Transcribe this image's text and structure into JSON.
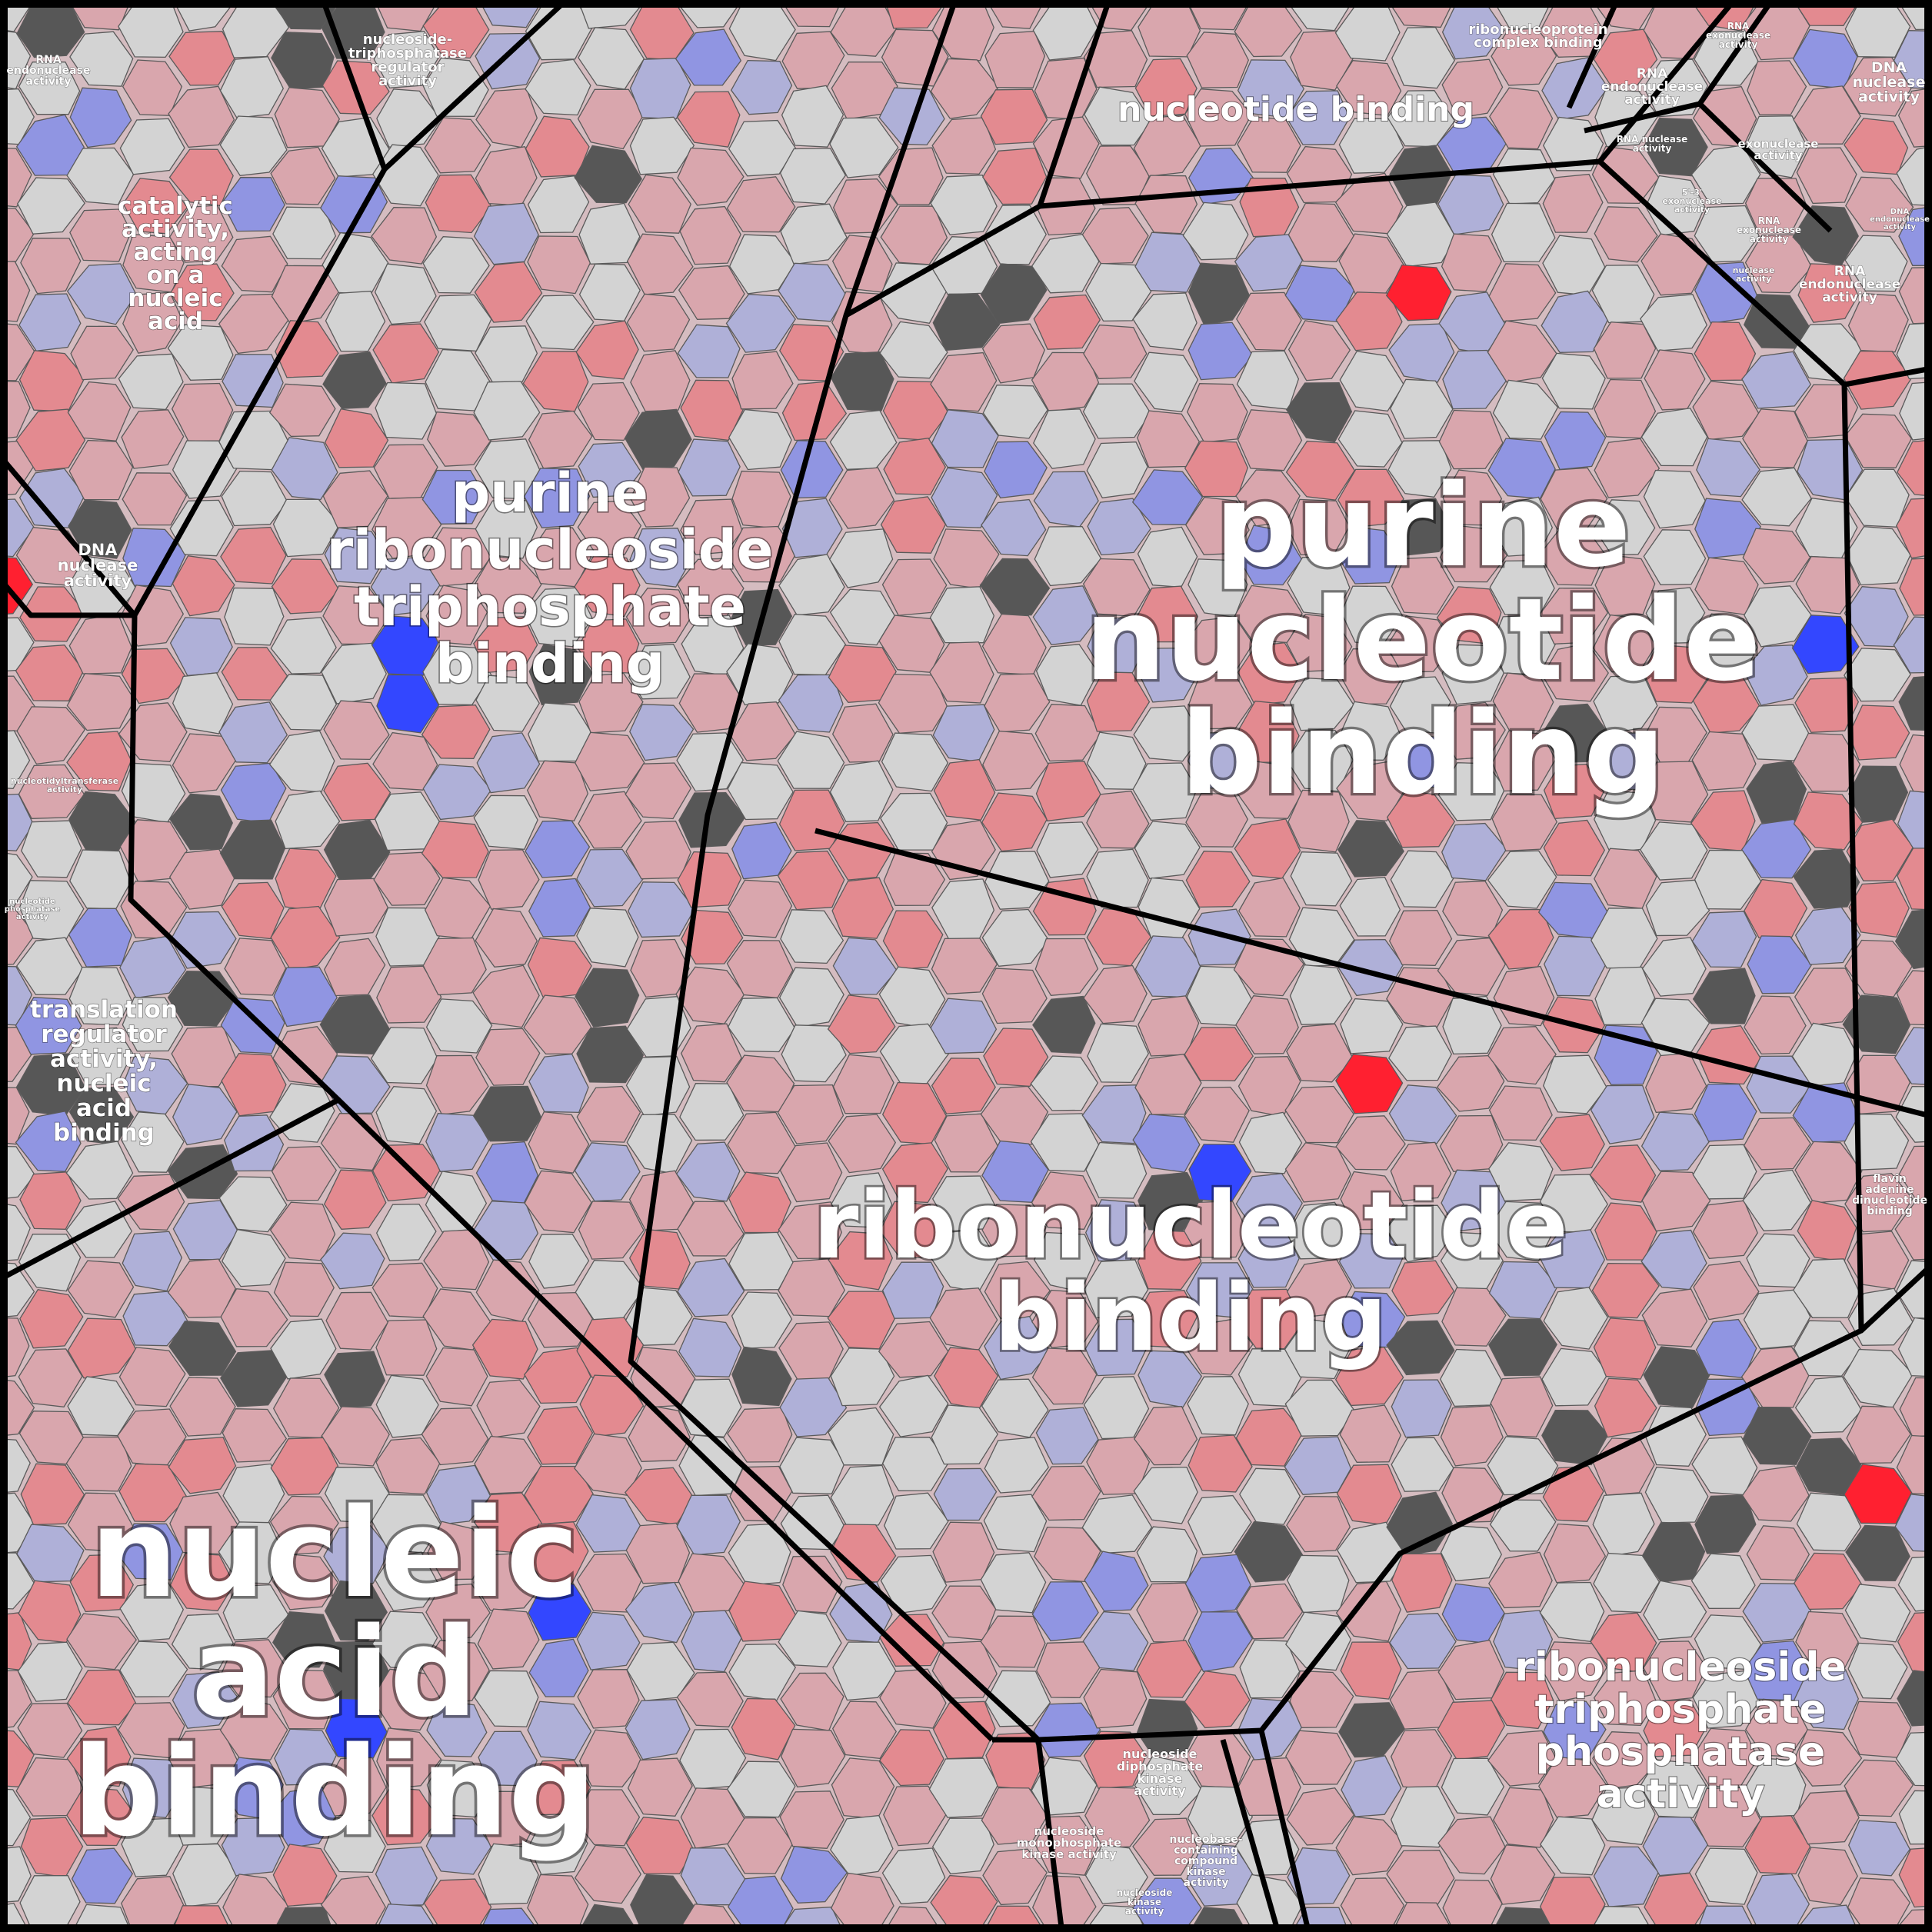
{
  "palette": {
    "frame": "#000000",
    "cell_border": "#5a5a5a",
    "cell_colors": [
      "#d3d3d3",
      "#d9a6ad",
      "#e38a90",
      "#afb0d8",
      "#9095e2",
      "#575757",
      "#ff2030",
      "#3347ff"
    ],
    "label_color": "#ffffff"
  },
  "regions": [
    {
      "id": "nucleic-acid-binding",
      "label": "nucleic acid binding",
      "lines": [
        "nucleic",
        "acid",
        "binding"
      ]
    },
    {
      "id": "purine-nucleotide-binding",
      "label": "purine nucleotide binding",
      "lines": [
        "purine",
        "nucleotide",
        "binding"
      ]
    },
    {
      "id": "ribonucleotide-binding",
      "label": "ribonucleotide binding",
      "lines": [
        "ribonucleotide",
        "binding"
      ]
    },
    {
      "id": "purine-ribonucleoside-triphosphate-binding",
      "label": "purine ribonucleoside triphosphate binding",
      "lines": [
        "purine",
        "ribonucleoside",
        "triphosphate",
        "binding"
      ]
    },
    {
      "id": "ribonucleoside-triphosphate-phosphatase-activity",
      "label": "ribonucleoside triphosphate phosphatase activity",
      "lines": [
        "ribonucleoside",
        "triphosphate",
        "phosphatase",
        "activity"
      ]
    },
    {
      "id": "nucleotide-binding",
      "label": "nucleotide binding",
      "lines": [
        "nucleotide binding"
      ]
    },
    {
      "id": "catalytic-activity-nucleic-acid",
      "label": "catalytic activity, acting on a nucleic acid",
      "lines": [
        "catalytic",
        "activity,",
        "acting",
        "on a",
        "nucleic",
        "acid"
      ]
    },
    {
      "id": "translation-regulator-activity",
      "label": "translation regulator activity, nucleic acid binding",
      "lines": [
        "translation",
        "regulator",
        "activity,",
        "nucleic",
        "acid",
        "binding"
      ]
    },
    {
      "id": "nucleoside-triphosphatase-regulator",
      "label": "nucleoside-triphosphatase regulator activity",
      "lines": [
        "nucleoside-",
        "triphosphatase",
        "regulator",
        "activity"
      ]
    },
    {
      "id": "ribonucleoprotein-complex-binding",
      "label": "ribonucleoprotein complex binding",
      "lines": [
        "ribonucleoprotein",
        "complex binding"
      ]
    },
    {
      "id": "rna-endonuclease-activity-top-left",
      "label": "RNA endonuclease activity",
      "lines": [
        "RNA",
        "endonuclease",
        "activity"
      ]
    },
    {
      "id": "dna-nuclease-activity-left",
      "label": "DNA nuclease activity",
      "lines": [
        "DNA",
        "nuclease",
        "activity"
      ]
    },
    {
      "id": "nucleotidyltransferase-activity",
      "label": "nucleotidyltransferase activity",
      "lines": [
        "nucleotidyltransferase",
        "activity"
      ]
    },
    {
      "id": "nucleotide-phosphatase-activity",
      "label": "nucleotide phosphatase activity",
      "lines": [
        "nucleotide",
        "phosphatase",
        "activity"
      ]
    },
    {
      "id": "rna-endonuclease-activity-top-right",
      "label": "RNA endonuclease activity",
      "lines": [
        "RNA",
        "endonuclease",
        "activity"
      ]
    },
    {
      "id": "rna-exonuclease-activity",
      "label": "RNA exonuclease activity",
      "lines": [
        "RNA",
        "exonuclease",
        "activity"
      ]
    },
    {
      "id": "dna-nuclease-activity-right",
      "label": "DNA nuclease activity",
      "lines": [
        "DNA",
        "nuclease",
        "activity"
      ]
    },
    {
      "id": "exonuclease-activity",
      "label": "exonuclease activity",
      "lines": [
        "exonuclease",
        "activity"
      ]
    },
    {
      "id": "rna-nuclease-activity",
      "label": "RNA nuclease activity",
      "lines": [
        "RNA nuclease",
        "activity"
      ]
    },
    {
      "id": "5-3-exonuclease-activity",
      "label": "5'-3' exonuclease activity",
      "lines": [
        "5'-3'",
        "exonuclease",
        "activity"
      ]
    },
    {
      "id": "rna-exonuclease-activity-2",
      "label": "RNA exonuclease activity",
      "lines": [
        "RNA",
        "exonuclease",
        "activity"
      ]
    },
    {
      "id": "nuclease-activity",
      "label": "nuclease activity",
      "lines": [
        "nuclease",
        "activity"
      ]
    },
    {
      "id": "rna-endonuclease-activity-right",
      "label": "RNA endonuclease activity",
      "lines": [
        "RNA",
        "endonuclease",
        "activity"
      ]
    },
    {
      "id": "dna-endonuclease-activity",
      "label": "DNA endonuclease activity",
      "lines": [
        "DNA",
        "endonuclease",
        "activity"
      ]
    },
    {
      "id": "flavin-adenine-dinucleotide-binding",
      "label": "flavin adenine dinucleotide binding",
      "lines": [
        "flavin",
        "adenine",
        "dinucleotide",
        "binding"
      ]
    },
    {
      "id": "nucleoside-diphosphate-kinase-activity",
      "label": "nucleoside diphosphate kinase activity",
      "lines": [
        "nucleoside",
        "diphosphate",
        "kinase",
        "activity"
      ]
    },
    {
      "id": "nucleoside-monophosphate-kinase-activity",
      "label": "nucleoside monophosphate kinase activity",
      "lines": [
        "nucleoside",
        "monophosphate",
        "kinase activity"
      ]
    },
    {
      "id": "nucleobase-containing-compound-kinase",
      "label": "nucleobase-containing compound kinase activity",
      "lines": [
        "nucleobase-",
        "containing",
        "compound",
        "kinase",
        "activity"
      ]
    },
    {
      "id": "nucleoside-kinase-activity",
      "label": "nucleoside kinase activity",
      "lines": [
        "nucleoside",
        "kinase",
        "activity"
      ]
    }
  ]
}
